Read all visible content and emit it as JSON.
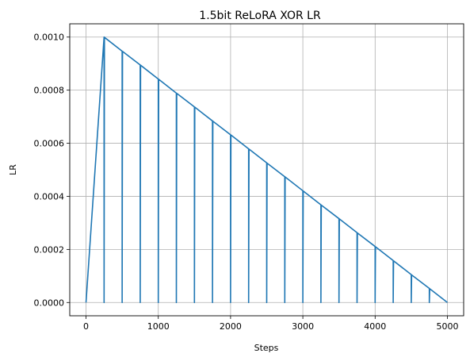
{
  "chart_data": {
    "type": "line",
    "title": "1.5bit ReLoRA XOR LR",
    "xlabel": "Steps",
    "ylabel": "LR",
    "xlim": [
      -225,
      5225
    ],
    "ylim": [
      -5e-05,
      0.00105
    ],
    "xticks": [
      0,
      1000,
      2000,
      3000,
      4000,
      5000
    ],
    "xtick_labels": [
      "0",
      "1000",
      "2000",
      "3000",
      "4000",
      "5000"
    ],
    "yticks": [
      0,
      0.0002,
      0.0004,
      0.0006,
      0.0008,
      0.001
    ],
    "ytick_labels": [
      "0.0000",
      "0.0002",
      "0.0004",
      "0.0006",
      "0.0008",
      "0.0010"
    ],
    "grid": true,
    "series": [
      {
        "color": "#1f77b4",
        "points": [
          [
            0,
            0
          ],
          [
            250,
            0.001
          ],
          [
            250,
            0
          ],
          [
            255,
            0.000999
          ],
          [
            500,
            0.000947
          ],
          [
            500,
            0
          ],
          [
            505,
            0.000946
          ],
          [
            750,
            0.000895
          ],
          [
            750,
            0
          ],
          [
            755,
            0.000894
          ],
          [
            1000,
            0.000842
          ],
          [
            1000,
            0
          ],
          [
            1005,
            0.000841
          ],
          [
            1250,
            0.000789
          ],
          [
            1250,
            0
          ],
          [
            1255,
            0.000788
          ],
          [
            1500,
            0.000737
          ],
          [
            1500,
            0
          ],
          [
            1505,
            0.000736
          ],
          [
            1750,
            0.000684
          ],
          [
            1750,
            0
          ],
          [
            1755,
            0.000683
          ],
          [
            2000,
            0.000632
          ],
          [
            2000,
            0
          ],
          [
            2005,
            0.000631
          ],
          [
            2250,
            0.000579
          ],
          [
            2250,
            0
          ],
          [
            2255,
            0.000578
          ],
          [
            2500,
            0.000526
          ],
          [
            2500,
            0
          ],
          [
            2505,
            0.000525
          ],
          [
            2750,
            0.000474
          ],
          [
            2750,
            0
          ],
          [
            2755,
            0.000473
          ],
          [
            3000,
            0.000421
          ],
          [
            3000,
            0
          ],
          [
            3005,
            0.00042
          ],
          [
            3250,
            0.000368
          ],
          [
            3250,
            0
          ],
          [
            3255,
            0.000367
          ],
          [
            3500,
            0.000316
          ],
          [
            3500,
            0
          ],
          [
            3505,
            0.000315
          ],
          [
            3750,
            0.000263
          ],
          [
            3750,
            0
          ],
          [
            3755,
            0.000262
          ],
          [
            4000,
            0.000211
          ],
          [
            4000,
            0
          ],
          [
            4005,
            0.00021
          ],
          [
            4250,
            0.000158
          ],
          [
            4250,
            0
          ],
          [
            4255,
            0.000157
          ],
          [
            4500,
            0.000105
          ],
          [
            4500,
            0
          ],
          [
            4505,
            0.000104
          ],
          [
            4750,
            5.3e-05
          ],
          [
            4750,
            0
          ],
          [
            4755,
            5.2e-05
          ],
          [
            5000,
            0
          ]
        ]
      }
    ]
  }
}
